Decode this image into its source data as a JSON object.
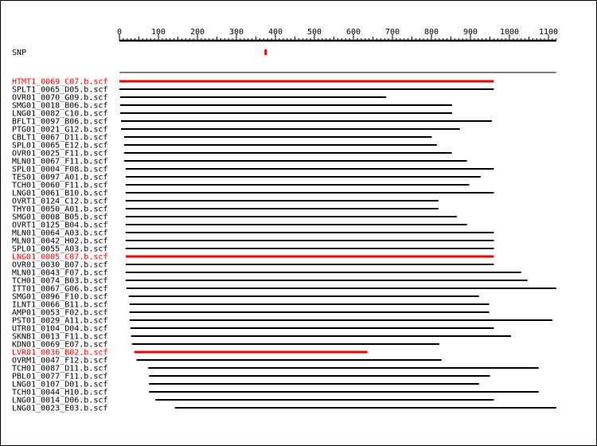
{
  "axis": {
    "ticks": [
      0,
      100,
      200,
      300,
      400,
      500,
      600,
      700,
      800,
      900,
      1000,
      1100
    ],
    "range": [
      0,
      1120
    ]
  },
  "snp": {
    "label": "SNP",
    "position": 375,
    "color": "#ff0000"
  },
  "colors": {
    "default": "#000000",
    "highlight": "#ff0000"
  },
  "reads": [
    {
      "name": "HTMT1_0069_C07.b.scf",
      "start": 0,
      "end": 960,
      "highlight": true
    },
    {
      "name": "SPLT1_0065_D05.b.scf",
      "start": 0,
      "end": 960,
      "highlight": false
    },
    {
      "name": "OVR01_0070_G09.b.scf",
      "start": 2,
      "end": 684,
      "highlight": false
    },
    {
      "name": "SMG01_0018_B06.b.scf",
      "start": 2,
      "end": 853,
      "highlight": false
    },
    {
      "name": "LNG01_0082_C10.b.scf",
      "start": 2,
      "end": 853,
      "highlight": false
    },
    {
      "name": "BFLT1_0097_B06.b.scf",
      "start": 4,
      "end": 955,
      "highlight": false
    },
    {
      "name": "PTG01_0021_G12.b.scf",
      "start": 4,
      "end": 873,
      "highlight": false
    },
    {
      "name": "CBLT1_0067_D11.b.scf",
      "start": 12,
      "end": 801,
      "highlight": false
    },
    {
      "name": "SPL01_0065_E12.b.scf",
      "start": 12,
      "end": 814,
      "highlight": false
    },
    {
      "name": "OVR01_0025_F11.b.scf",
      "start": 12,
      "end": 852,
      "highlight": false
    },
    {
      "name": "MLN01_0067_F11.b.scf",
      "start": 12,
      "end": 891,
      "highlight": false
    },
    {
      "name": "SPL01_0004_F08.b.scf",
      "start": 16,
      "end": 960,
      "highlight": false
    },
    {
      "name": "TES01_0097_A01.b.scf",
      "start": 16,
      "end": 926,
      "highlight": false
    },
    {
      "name": "TCH01_0060_F11.b.scf",
      "start": 16,
      "end": 897,
      "highlight": false
    },
    {
      "name": "LNG01_0061_B10.b.scf",
      "start": 16,
      "end": 960,
      "highlight": false
    },
    {
      "name": "OVRT1_0124_C12.b.scf",
      "start": 16,
      "end": 818,
      "highlight": false
    },
    {
      "name": "THY01_0050_A01.b.scf",
      "start": 16,
      "end": 818,
      "highlight": false
    },
    {
      "name": "SMG01_0008_B05.b.scf",
      "start": 16,
      "end": 865,
      "highlight": false
    },
    {
      "name": "OVRT1_0125_B04.b.scf",
      "start": 16,
      "end": 891,
      "highlight": false
    },
    {
      "name": "MLN01_0064_A03.b.scf",
      "start": 16,
      "end": 960,
      "highlight": false
    },
    {
      "name": "MLN01_0042_H02.b.scf",
      "start": 16,
      "end": 960,
      "highlight": false
    },
    {
      "name": "SPL01_0055_A03.b.scf",
      "start": 16,
      "end": 960,
      "highlight": false
    },
    {
      "name": "LNG01_0005_C07.b.scf",
      "start": 16,
      "end": 960,
      "highlight": true
    },
    {
      "name": "OVR01_0030_B07.b.scf",
      "start": 16,
      "end": 960,
      "highlight": false
    },
    {
      "name": "MLN01_0043_F07.b.scf",
      "start": 16,
      "end": 1030,
      "highlight": false
    },
    {
      "name": "TCH01_0074_B03.b.scf",
      "start": 16,
      "end": 1046,
      "highlight": false
    },
    {
      "name": "ITT01_0067_G06.b.scf",
      "start": 18,
      "end": 1120,
      "highlight": false
    },
    {
      "name": "SMG01_0096_F10.b.scf",
      "start": 24,
      "end": 922,
      "highlight": false
    },
    {
      "name": "ILNT1_0066_B11.b.scf",
      "start": 26,
      "end": 948,
      "highlight": false
    },
    {
      "name": "AMP01_0053_F02.b.scf",
      "start": 26,
      "end": 948,
      "highlight": false
    },
    {
      "name": "PST01_0029_A11.b.scf",
      "start": 26,
      "end": 1110,
      "highlight": false
    },
    {
      "name": "UTR01_0104_D04.b.scf",
      "start": 28,
      "end": 960,
      "highlight": false
    },
    {
      "name": "SKNB1_0013_F11.b.scf",
      "start": 30,
      "end": 1004,
      "highlight": false
    },
    {
      "name": "KDN01_0069_E07.b.scf",
      "start": 32,
      "end": 820,
      "highlight": false
    },
    {
      "name": "LVR01_0036_B02.b.scf",
      "start": 38,
      "end": 636,
      "highlight": true
    },
    {
      "name": "OVRM1_0047_F12.b.scf",
      "start": 44,
      "end": 826,
      "highlight": false
    },
    {
      "name": "TCH01_0087_D11.b.scf",
      "start": 74,
      "end": 1075,
      "highlight": false
    },
    {
      "name": "PBL01_0077_F11.b.scf",
      "start": 76,
      "end": 950,
      "highlight": false
    },
    {
      "name": "LNG01_0107_D01.b.scf",
      "start": 76,
      "end": 922,
      "highlight": false
    },
    {
      "name": "TCH01_0044_H10.b.scf",
      "start": 76,
      "end": 1075,
      "highlight": false
    },
    {
      "name": "LNG01_0014_D06.b.scf",
      "start": 92,
      "end": 960,
      "highlight": false
    },
    {
      "name": "LNG01_0023_E03.b.scf",
      "start": 142,
      "end": 1120,
      "highlight": false
    }
  ]
}
